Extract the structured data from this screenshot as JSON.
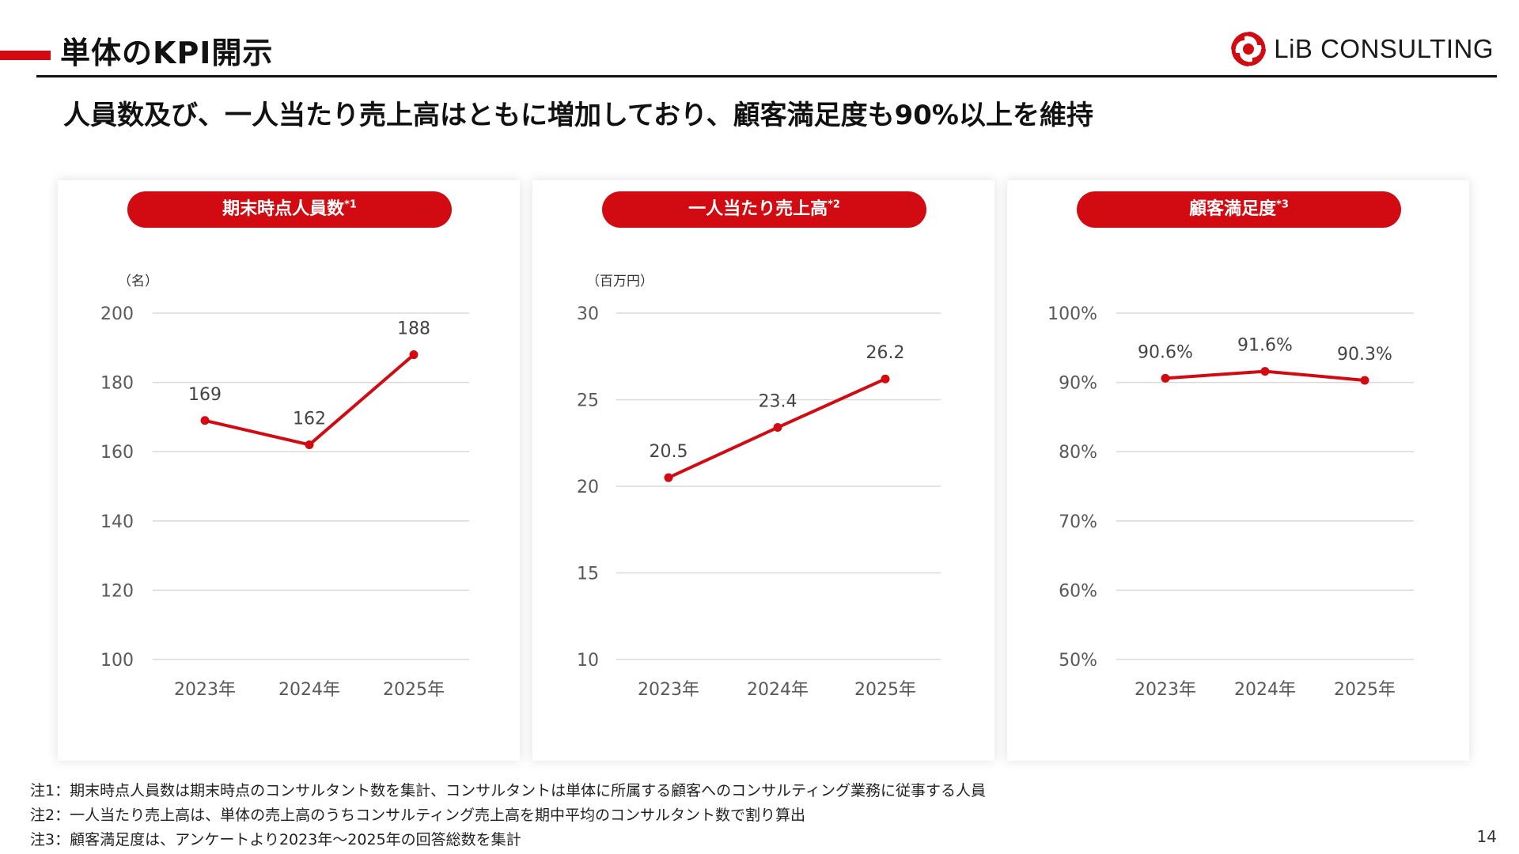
{
  "header": {
    "title": "単体のKPI開示",
    "logo_text": "LiB CONSULTING",
    "headline": "人員数及び、一人当たり売上高はともに増加しており、顧客満足度も90%以上を維持"
  },
  "colors": {
    "accent": "#d20a11",
    "grid": "#d9d9d9",
    "axis_text": "#595959"
  },
  "chart_data": [
    {
      "type": "line",
      "title": "期末時点人員数",
      "title_note": "*1",
      "unit_label": "（名）",
      "categories": [
        "2023年",
        "2024年",
        "2025年"
      ],
      "values": [
        169,
        162,
        188
      ],
      "value_labels": [
        "169",
        "162",
        "188"
      ],
      "ylim": [
        100,
        200
      ],
      "yticks": [
        "100",
        "120",
        "140",
        "160",
        "180",
        "200"
      ],
      "grid": true
    },
    {
      "type": "line",
      "title": "一人当たり売上高",
      "title_note": "*2",
      "unit_label": "（百万円）",
      "categories": [
        "2023年",
        "2024年",
        "2025年"
      ],
      "values": [
        20.5,
        23.4,
        26.2
      ],
      "value_labels": [
        "20.5",
        "23.4",
        "26.2"
      ],
      "ylim": [
        10,
        30
      ],
      "yticks": [
        "10",
        "15",
        "20",
        "25",
        "30"
      ],
      "grid": true
    },
    {
      "type": "line",
      "title": "顧客満足度",
      "title_note": "*3",
      "unit_label": "",
      "categories": [
        "2023年",
        "2024年",
        "2025年"
      ],
      "values": [
        90.6,
        91.6,
        90.3
      ],
      "value_labels": [
        "90.6%",
        "91.6%",
        "90.3%"
      ],
      "ylim": [
        50,
        100
      ],
      "yticks": [
        "50%",
        "60%",
        "70%",
        "80%",
        "90%",
        "100%"
      ],
      "grid": true
    }
  ],
  "footnotes": [
    "注1：期末時点人員数は期末時点のコンサルタント数を集計、コンサルタントは単体に所属する顧客へのコンサルティング業務に従事する人員",
    "注2：一人当たり売上高は、単体の売上高のうちコンサルティング売上高を期中平均のコンサルタント数で割り算出",
    "注3：顧客満足度は、アンケートより2023年～2025年の回答総数を集計"
  ],
  "page_number": "14"
}
